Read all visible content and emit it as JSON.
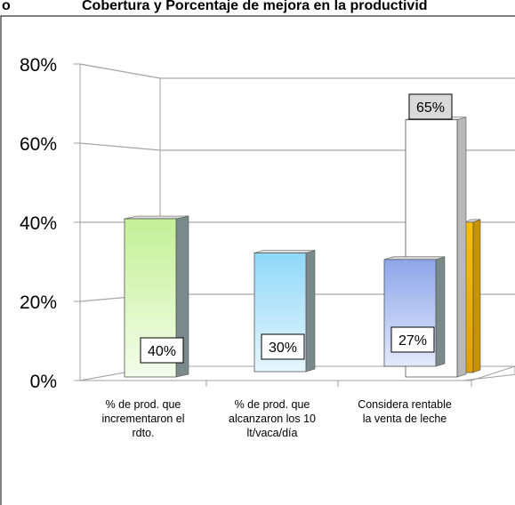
{
  "header": {
    "prefix": "o",
    "title": "Cobertura y Porcentaje de mejora en  la productivid"
  },
  "chart_data": {
    "type": "bar",
    "ylim": [
      0,
      80
    ],
    "y_ticks": [
      "0%",
      "20%",
      "40%",
      "60%",
      "80%"
    ],
    "categories": [
      [
        "% de prod. que",
        "incrementaron el",
        "rdto."
      ],
      [
        "% de prod. que",
        "alcanzaron los 10",
        "lt/vaca/día"
      ],
      [
        "Considera rentable",
        "la venta de leche"
      ]
    ],
    "bars": [
      {
        "category_index": 0,
        "value": 40,
        "label": "40%",
        "color": "#d8f5b8"
      },
      {
        "category_index": 1,
        "value": 30,
        "label": "30%",
        "color": "#bfe6f8"
      },
      {
        "category_index": 2,
        "value": 27,
        "label": "27%",
        "color": "#b4c6ef"
      },
      {
        "category_index": 2,
        "value": 65,
        "label": "65%",
        "color": "#ffffff"
      },
      {
        "category_index": 2,
        "value": 38,
        "label": "",
        "color": "#f0b400"
      }
    ],
    "grid": true,
    "style": "3d-bar"
  }
}
